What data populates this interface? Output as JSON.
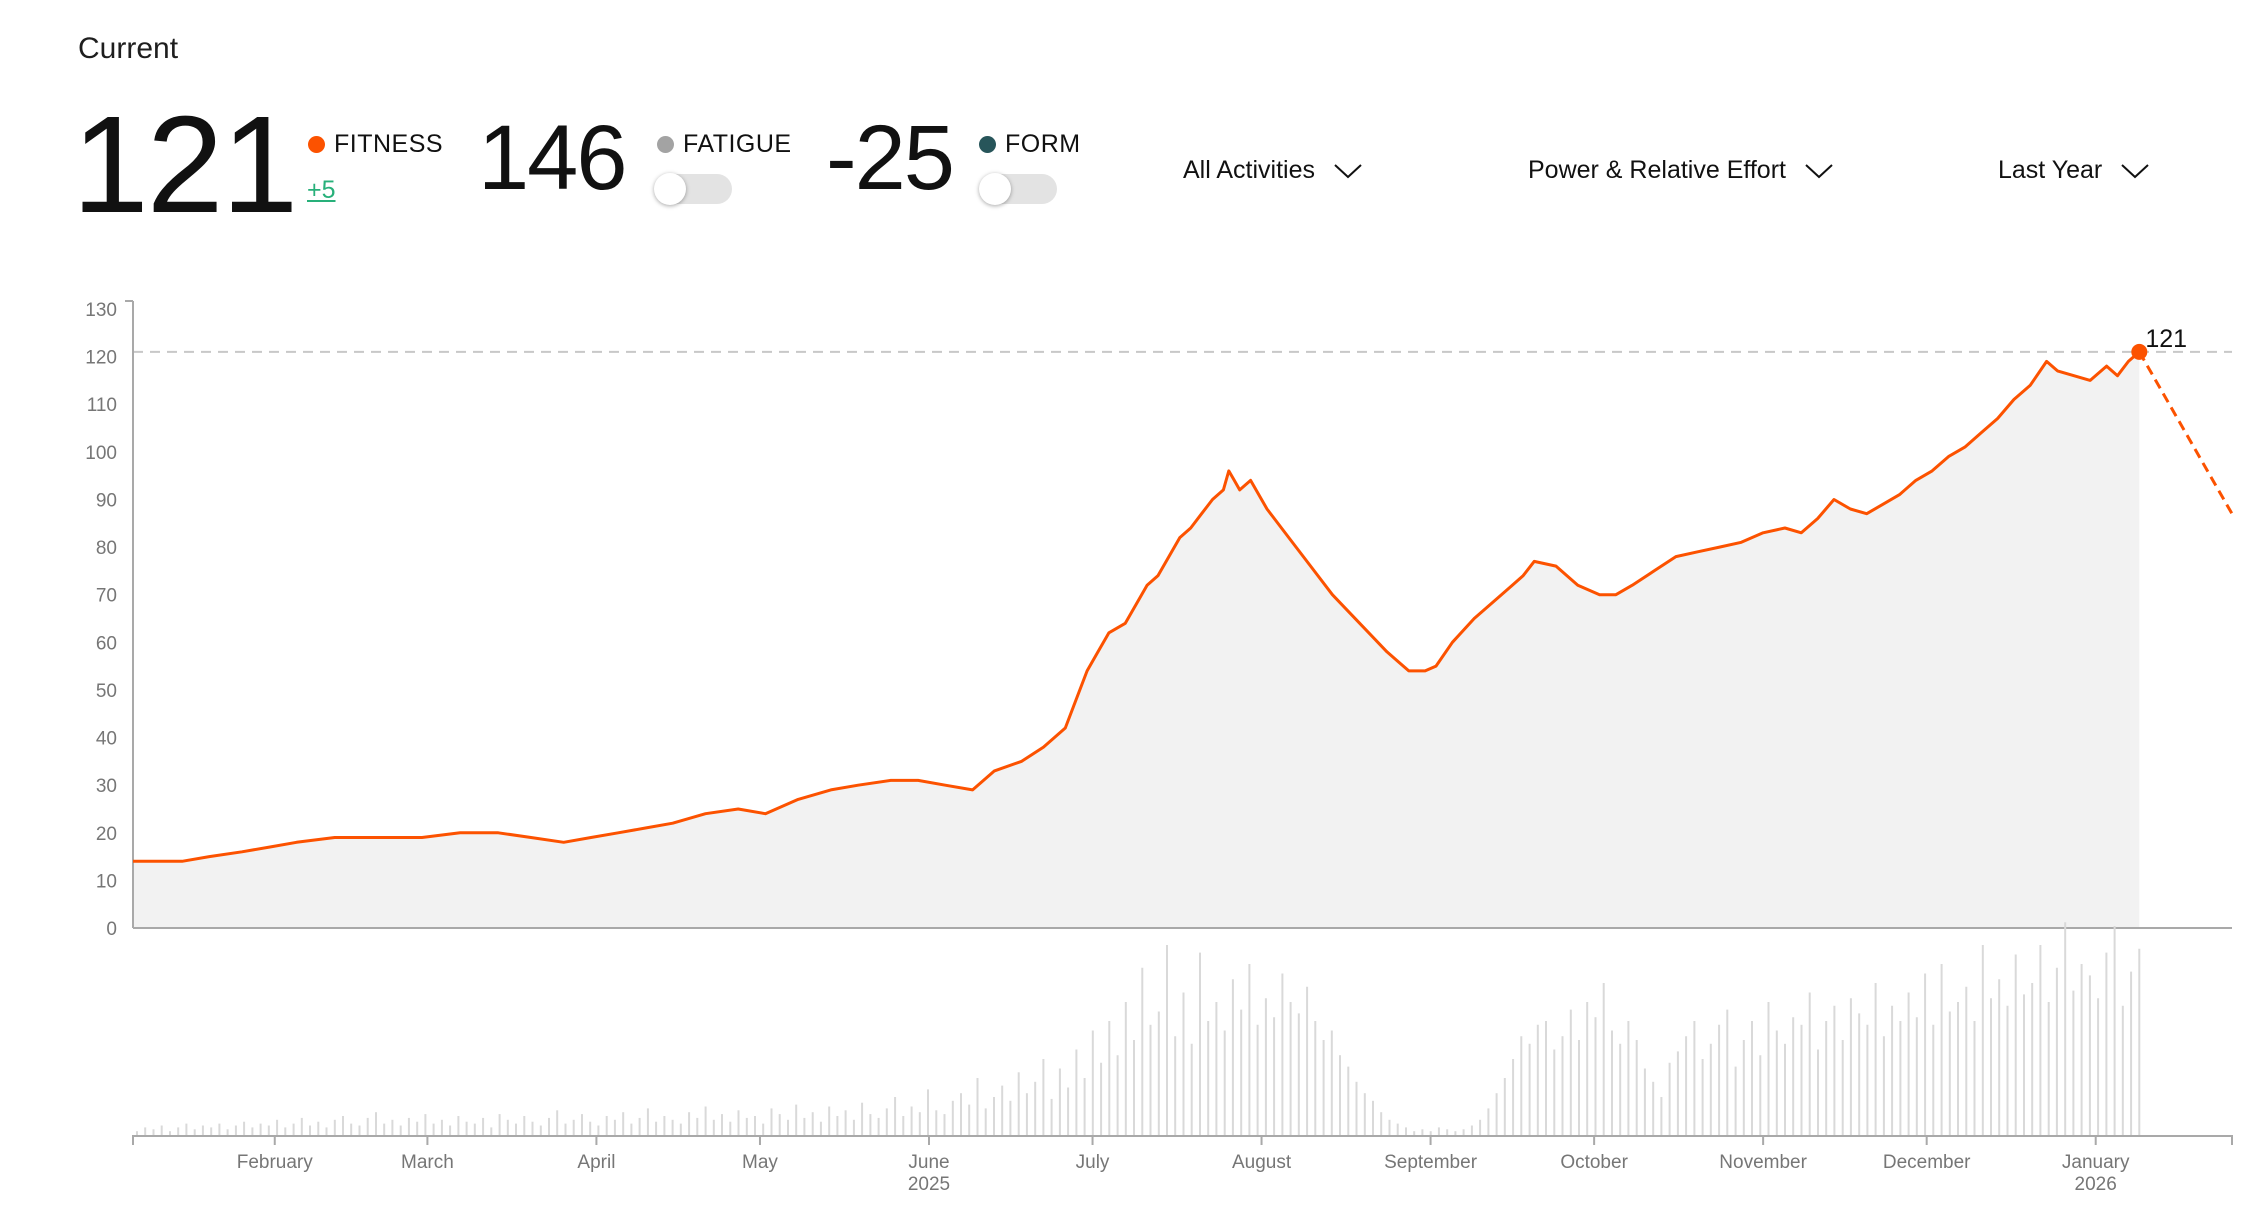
{
  "header": {
    "current_label": "Current"
  },
  "metrics": {
    "fitness": {
      "value": "121",
      "label": "FITNESS",
      "delta": "+5",
      "color": "#fc5200"
    },
    "fatigue": {
      "value": "146",
      "label": "FATIGUE",
      "color": "#a3a3a3",
      "toggle_on": false
    },
    "form": {
      "value": "-25",
      "label": "FORM",
      "color": "#27555a",
      "toggle_on": false
    }
  },
  "filters": {
    "activities": "All Activities",
    "metric": "Power & Relative Effort",
    "range": "Last Year"
  },
  "icons": {
    "dropdown": "chevron-down-icon"
  },
  "colors": {
    "fitness_line": "#fc5200",
    "area_fill": "#f2f2f2",
    "daily_bar": "#d9d9d9",
    "axis": "#a9a9a9",
    "reference_line": "#c8c8c8"
  },
  "chart_data": {
    "type": "line",
    "title": "",
    "ylim": [
      0,
      130
    ],
    "yticks": [
      0,
      10,
      20,
      30,
      40,
      50,
      60,
      70,
      80,
      90,
      100,
      110,
      120,
      130
    ],
    "x_axis": {
      "start": "2025-01-06",
      "end": "2026-01-26",
      "month_ticks": [
        {
          "date": "2025-02-01",
          "label": "February"
        },
        {
          "date": "2025-03-01",
          "label": "March"
        },
        {
          "date": "2025-04-01",
          "label": "April"
        },
        {
          "date": "2025-05-01",
          "label": "May"
        },
        {
          "date": "2025-06-01",
          "label": "June",
          "year": "2025"
        },
        {
          "date": "2025-07-01",
          "label": "July"
        },
        {
          "date": "2025-08-01",
          "label": "August"
        },
        {
          "date": "2025-09-01",
          "label": "September"
        },
        {
          "date": "2025-10-01",
          "label": "October"
        },
        {
          "date": "2025-11-01",
          "label": "November"
        },
        {
          "date": "2025-12-01",
          "label": "December"
        },
        {
          "date": "2026-01-01",
          "label": "January",
          "year": "2026"
        }
      ]
    },
    "series": [
      {
        "key": "fitness",
        "points": [
          [
            "2025-01-06",
            14
          ],
          [
            "2025-01-10",
            14
          ],
          [
            "2025-01-15",
            14
          ],
          [
            "2025-01-20",
            15
          ],
          [
            "2025-01-26",
            16
          ],
          [
            "2025-01-31",
            17
          ],
          [
            "2025-02-05",
            18
          ],
          [
            "2025-02-12",
            19
          ],
          [
            "2025-02-20",
            19
          ],
          [
            "2025-02-28",
            19
          ],
          [
            "2025-03-07",
            20
          ],
          [
            "2025-03-14",
            20
          ],
          [
            "2025-03-20",
            19
          ],
          [
            "2025-03-26",
            18
          ],
          [
            "2025-03-31",
            19
          ],
          [
            "2025-04-05",
            20
          ],
          [
            "2025-04-10",
            21
          ],
          [
            "2025-04-15",
            22
          ],
          [
            "2025-04-21",
            24
          ],
          [
            "2025-04-27",
            25
          ],
          [
            "2025-05-02",
            24
          ],
          [
            "2025-05-08",
            27
          ],
          [
            "2025-05-14",
            29
          ],
          [
            "2025-05-19",
            30
          ],
          [
            "2025-05-25",
            31
          ],
          [
            "2025-05-30",
            31
          ],
          [
            "2025-06-04",
            30
          ],
          [
            "2025-06-09",
            29
          ],
          [
            "2025-06-13",
            33
          ],
          [
            "2025-06-18",
            35
          ],
          [
            "2025-06-22",
            38
          ],
          [
            "2025-06-26",
            42
          ],
          [
            "2025-06-28",
            48
          ],
          [
            "2025-06-30",
            54
          ],
          [
            "2025-07-02",
            58
          ],
          [
            "2025-07-04",
            62
          ],
          [
            "2025-07-07",
            64
          ],
          [
            "2025-07-09",
            68
          ],
          [
            "2025-07-11",
            72
          ],
          [
            "2025-07-13",
            74
          ],
          [
            "2025-07-15",
            78
          ],
          [
            "2025-07-17",
            82
          ],
          [
            "2025-07-19",
            84
          ],
          [
            "2025-07-21",
            87
          ],
          [
            "2025-07-23",
            90
          ],
          [
            "2025-07-25",
            92
          ],
          [
            "2025-07-26",
            96
          ],
          [
            "2025-07-27",
            94
          ],
          [
            "2025-07-28",
            92
          ],
          [
            "2025-07-30",
            94
          ],
          [
            "2025-08-02",
            88
          ],
          [
            "2025-08-06",
            82
          ],
          [
            "2025-08-10",
            76
          ],
          [
            "2025-08-14",
            70
          ],
          [
            "2025-08-19",
            64
          ],
          [
            "2025-08-24",
            58
          ],
          [
            "2025-08-28",
            54
          ],
          [
            "2025-08-31",
            54
          ],
          [
            "2025-09-02",
            55
          ],
          [
            "2025-09-05",
            60
          ],
          [
            "2025-09-09",
            65
          ],
          [
            "2025-09-13",
            69
          ],
          [
            "2025-09-16",
            72
          ],
          [
            "2025-09-18",
            74
          ],
          [
            "2025-09-20",
            77
          ],
          [
            "2025-09-24",
            76
          ],
          [
            "2025-09-28",
            72
          ],
          [
            "2025-10-02",
            70
          ],
          [
            "2025-10-05",
            70
          ],
          [
            "2025-10-08",
            72
          ],
          [
            "2025-10-12",
            75
          ],
          [
            "2025-10-16",
            78
          ],
          [
            "2025-10-20",
            79
          ],
          [
            "2025-10-24",
            80
          ],
          [
            "2025-10-28",
            81
          ],
          [
            "2025-11-01",
            83
          ],
          [
            "2025-11-05",
            84
          ],
          [
            "2025-11-08",
            83
          ],
          [
            "2025-11-11",
            86
          ],
          [
            "2025-11-14",
            90
          ],
          [
            "2025-11-17",
            88
          ],
          [
            "2025-11-20",
            87
          ],
          [
            "2025-11-23",
            89
          ],
          [
            "2025-11-26",
            91
          ],
          [
            "2025-11-29",
            94
          ],
          [
            "2025-12-02",
            96
          ],
          [
            "2025-12-05",
            99
          ],
          [
            "2025-12-08",
            101
          ],
          [
            "2025-12-11",
            104
          ],
          [
            "2025-12-14",
            107
          ],
          [
            "2025-12-17",
            111
          ],
          [
            "2025-12-20",
            114
          ],
          [
            "2025-12-23",
            119
          ],
          [
            "2025-12-25",
            117
          ],
          [
            "2025-12-28",
            116
          ],
          [
            "2025-12-31",
            115
          ],
          [
            "2026-01-03",
            118
          ],
          [
            "2026-01-05",
            116
          ],
          [
            "2026-01-07",
            119
          ],
          [
            "2026-01-09",
            121
          ]
        ]
      },
      {
        "key": "fitness-projection",
        "style": "dashed",
        "points": [
          [
            "2026-01-09",
            121
          ],
          [
            "2026-01-26",
            87
          ]
        ]
      }
    ],
    "current_point": {
      "date": "2026-01-09",
      "value": 121,
      "label": "121"
    },
    "reference_line": 121,
    "daily_load": {
      "description_unit": "relative effort",
      "ymax": 100,
      "values": [
        2,
        4,
        3,
        5,
        2,
        4,
        6,
        3,
        5,
        4,
        6,
        3,
        5,
        7,
        4,
        6,
        5,
        8,
        4,
        6,
        9,
        5,
        7,
        4,
        8,
        10,
        6,
        5,
        9,
        12,
        6,
        8,
        5,
        9,
        7,
        11,
        6,
        8,
        5,
        10,
        7,
        6,
        9,
        4,
        11,
        8,
        6,
        10,
        7,
        5,
        9,
        13,
        6,
        8,
        11,
        7,
        5,
        10,
        8,
        12,
        6,
        9,
        14,
        7,
        10,
        8,
        6,
        12,
        9,
        15,
        8,
        11,
        7,
        13,
        9,
        10,
        6,
        14,
        11,
        8,
        16,
        9,
        12,
        7,
        15,
        10,
        13,
        8,
        17,
        11,
        9,
        14,
        20,
        10,
        15,
        12,
        24,
        13,
        11,
        18,
        22,
        16,
        30,
        14,
        20,
        26,
        18,
        33,
        22,
        28,
        40,
        19,
        35,
        25,
        45,
        30,
        55,
        38,
        60,
        42,
        70,
        50,
        88,
        58,
        65,
        100,
        52,
        75,
        48,
        96,
        60,
        70,
        55,
        82,
        66,
        90,
        58,
        72,
        62,
        85,
        70,
        64,
        78,
        60,
        50,
        55,
        42,
        36,
        28,
        22,
        18,
        12,
        8,
        6,
        4,
        2,
        3,
        2,
        4,
        3,
        2,
        3,
        5,
        8,
        14,
        22,
        30,
        40,
        52,
        48,
        58,
        60,
        45,
        52,
        66,
        50,
        70,
        62,
        80,
        55,
        48,
        60,
        50,
        35,
        28,
        20,
        38,
        44,
        52,
        60,
        40,
        48,
        58,
        66,
        36,
        50,
        60,
        42,
        70,
        55,
        48,
        62,
        58,
        75,
        45,
        60,
        68,
        50,
        72,
        64,
        58,
        80,
        52,
        68,
        60,
        75,
        62,
        85,
        58,
        90,
        65,
        70,
        78,
        60,
        100,
        72,
        82,
        68,
        95,
        74,
        80,
        100,
        70,
        88,
        112,
        76,
        90,
        84,
        72,
        96,
        110,
        68,
        86,
        98
      ]
    }
  }
}
